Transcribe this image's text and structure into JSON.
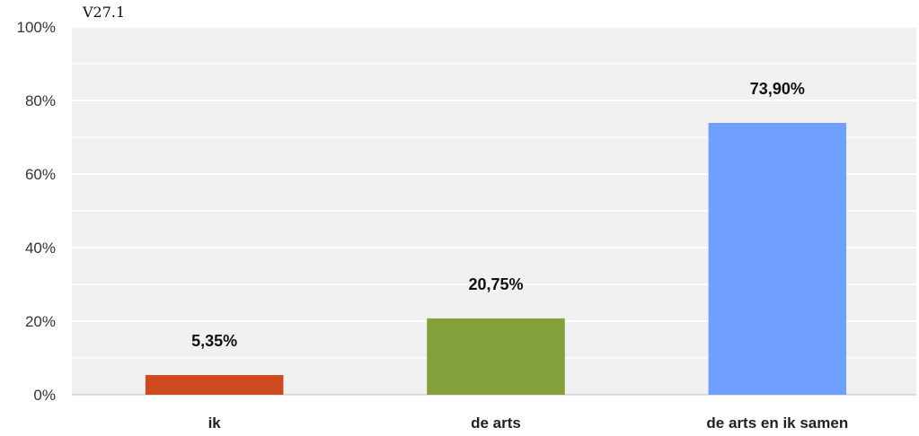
{
  "chart_data": {
    "type": "bar",
    "title": "V27.1",
    "categories": [
      "ik",
      "de arts",
      "de arts en ik samen"
    ],
    "values": [
      5.35,
      20.75,
      73.9
    ],
    "value_labels": [
      "5,35%",
      "20,75%",
      "73,90%"
    ],
    "colors": [
      "#cc4a1d",
      "#83a03b",
      "#6fa0ff"
    ],
    "xlabel": "",
    "ylabel": "",
    "ylim": [
      0,
      100
    ],
    "yticks": [
      0,
      20,
      40,
      60,
      80,
      100
    ],
    "ytick_labels": [
      "0%",
      "20%",
      "40%",
      "60%",
      "80%",
      "100%"
    ],
    "grid": true,
    "legend": "none"
  }
}
